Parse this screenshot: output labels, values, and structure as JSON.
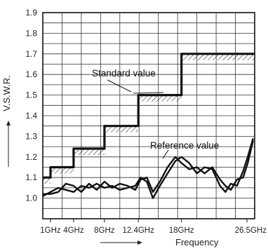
{
  "chart_data": {
    "type": "line",
    "title": "",
    "xlabel": "Frequency",
    "ylabel": "V.S.W.R.",
    "ylim": [
      0.9,
      1.9
    ],
    "xlim": [
      0,
      27.5
    ],
    "yticks": [
      "1.0",
      "1.1",
      "1.2",
      "1.3",
      "1.4",
      "1.5",
      "1.6",
      "1.7",
      "1.8",
      "1.9"
    ],
    "ytick_values": [
      1.0,
      1.1,
      1.2,
      1.3,
      1.4,
      1.5,
      1.6,
      1.7,
      1.8,
      1.9
    ],
    "xticks": [
      "1GHz",
      "4GHz",
      "8GHz",
      "12.4GHz",
      "18GHz",
      "26.5GHz"
    ],
    "xtick_values": [
      1.0,
      4.0,
      8.0,
      12.4,
      18.0,
      26.5
    ],
    "grid": true,
    "annotations": [
      "Standard value",
      "Reference value"
    ],
    "series": [
      {
        "name": "Standard value",
        "style": "step",
        "hatched": true,
        "x": [
          0,
          1,
          1,
          4,
          4,
          8,
          8,
          12.4,
          12.4,
          18,
          18,
          27.5
        ],
        "y": [
          1.1,
          1.1,
          1.15,
          1.15,
          1.24,
          1.24,
          1.35,
          1.35,
          1.5,
          1.5,
          1.7,
          1.7
        ]
      },
      {
        "name": "Reference value",
        "x": [
          0,
          1,
          2,
          3,
          4,
          5,
          6,
          7,
          8,
          9,
          10,
          11,
          12,
          12.7,
          13.5,
          14.3,
          15.2,
          16.2,
          17.2,
          18,
          19,
          20,
          21,
          22,
          23,
          23.7,
          24.4,
          25.2,
          26.0,
          26.6,
          27.3
        ],
        "y": [
          1.01,
          1.03,
          1.05,
          1.04,
          1.03,
          1.06,
          1.05,
          1.07,
          1.05,
          1.06,
          1.04,
          1.05,
          1.06,
          1.1,
          1.08,
          1.0,
          1.06,
          1.12,
          1.18,
          1.2,
          1.17,
          1.12,
          1.15,
          1.14,
          1.06,
          1.03,
          1.07,
          1.06,
          1.13,
          1.2,
          1.29
        ]
      },
      {
        "name": "",
        "x": [
          0,
          1,
          2,
          3,
          4,
          5,
          6,
          7,
          8,
          9,
          10,
          11,
          12,
          12.7,
          13.5,
          14.3,
          15.2,
          16.2,
          17.2,
          18,
          19,
          20,
          21,
          22,
          23,
          23.7,
          24.4,
          25.2,
          26.0,
          26.6,
          27.3
        ],
        "y": [
          1.02,
          1.02,
          1.03,
          1.07,
          1.06,
          1.03,
          1.07,
          1.04,
          1.08,
          1.05,
          1.07,
          1.06,
          1.04,
          1.09,
          1.1,
          1.03,
          1.08,
          1.15,
          1.2,
          1.17,
          1.14,
          1.15,
          1.12,
          1.15,
          1.09,
          1.06,
          1.04,
          1.09,
          1.1,
          1.17,
          1.28
        ]
      }
    ]
  }
}
